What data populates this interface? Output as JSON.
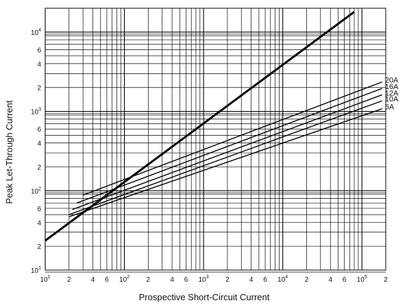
{
  "chart_data": {
    "type": "line",
    "title": "",
    "xlabel": "Prospective Short-Circuit Current",
    "ylabel": "Peak Let-Through Current",
    "xscale": "log",
    "yscale": "log",
    "xlim": [
      10,
      200000
    ],
    "ylim": [
      10,
      20000
    ],
    "grid": true,
    "x_ticks": [
      {
        "base": "10",
        "exp": "1"
      },
      {
        "text": "2"
      },
      {
        "text": "4"
      },
      {
        "text": "6"
      },
      {
        "base": "10",
        "exp": "2"
      },
      {
        "text": "2"
      },
      {
        "text": "4"
      },
      {
        "text": "6"
      },
      {
        "base": "10",
        "exp": "3"
      },
      {
        "text": "2"
      },
      {
        "text": "4"
      },
      {
        "text": "6"
      },
      {
        "base": "10",
        "exp": "4"
      },
      {
        "text": "2"
      },
      {
        "text": "4"
      },
      {
        "text": "6"
      },
      {
        "base": "10",
        "exp": "5"
      },
      {
        "text": "2"
      }
    ],
    "y_ticks": [
      {
        "base": "10",
        "exp": "1"
      },
      {
        "text": "2"
      },
      {
        "text": "4"
      },
      {
        "text": "6"
      },
      {
        "base": "10",
        "exp": "2"
      },
      {
        "text": "2"
      },
      {
        "text": "4"
      },
      {
        "text": "6"
      },
      {
        "base": "10",
        "exp": "3"
      },
      {
        "text": "2"
      },
      {
        "text": "4"
      },
      {
        "text": "6"
      },
      {
        "base": "10",
        "exp": "4"
      }
    ],
    "series": [
      {
        "name": "",
        "role": "reference",
        "x": [
          10,
          80000
        ],
        "y": [
          23.5,
          18000
        ]
      },
      {
        "name": "20A",
        "x": [
          30,
          180000
        ],
        "y": [
          88,
          2350
        ]
      },
      {
        "name": "16A",
        "x": [
          25,
          180000
        ],
        "y": [
          70,
          1950
        ]
      },
      {
        "name": "12A",
        "x": [
          22,
          180000
        ],
        "y": [
          58,
          1620
        ]
      },
      {
        "name": "10A",
        "x": [
          20,
          180000
        ],
        "y": [
          50,
          1360
        ]
      },
      {
        "name": "6A",
        "x": [
          20,
          180000
        ],
        "y": [
          47,
          1080
        ]
      }
    ]
  }
}
